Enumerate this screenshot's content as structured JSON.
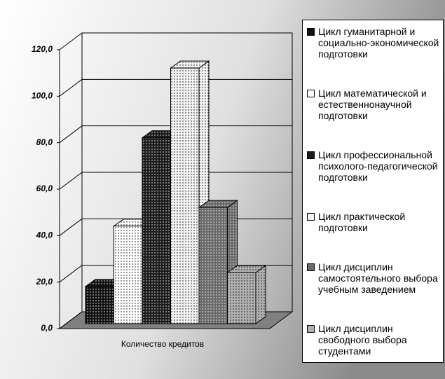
{
  "chart_data": {
    "type": "bar3d",
    "categories": [
      "Количество кредитов"
    ],
    "ylim": [
      0,
      120
    ],
    "yticks": [
      {
        "value": 0,
        "label": "0,0"
      },
      {
        "value": 20,
        "label": "20,0"
      },
      {
        "value": 40,
        "label": "40,0"
      },
      {
        "value": 60,
        "label": "60,0"
      },
      {
        "value": 80,
        "label": "80,0"
      },
      {
        "value": 100,
        "label": "100,0"
      },
      {
        "value": 120,
        "label": "120,0"
      }
    ],
    "grid": true,
    "legend": "right",
    "series": [
      {
        "name": "Цикл гуманитарной и социально-экономической подготовки",
        "color": "#111111",
        "values": [
          16
        ]
      },
      {
        "name": "Цикл математической и естественнонаучной подготовки",
        "color": "#ffffff",
        "values": [
          42
        ]
      },
      {
        "name": "Цикл профессиональной психолого-педагогической подготовки",
        "color": "#1c1c1c",
        "values": [
          80
        ]
      },
      {
        "name": "Цикл практической подготовки",
        "color": "#f2f2f2",
        "values": [
          110
        ]
      },
      {
        "name": "Цикл дисциплин самостоятельного выбора учебным заведением",
        "color": "#6a6a6a",
        "values": [
          50
        ]
      },
      {
        "name": "Цикл дисциплин свободного выбора студентами",
        "color": "#b0b0b0",
        "values": [
          22
        ]
      }
    ]
  }
}
